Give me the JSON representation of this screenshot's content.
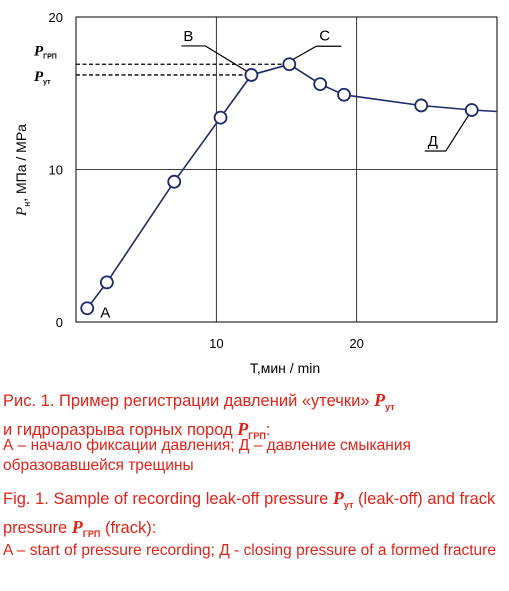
{
  "chart_data": {
    "type": "line",
    "xlabel": "T,мин / min",
    "ylabel_main": "P",
    "ylabel_sub": "н",
    "ylabel_rest": ", МПа / MPa",
    "xlim": [
      0,
      30
    ],
    "ylim": [
      0,
      20
    ],
    "x_ticks": [
      10,
      20
    ],
    "y_ticks": [
      0,
      10,
      20
    ],
    "grid": true,
    "series": [
      {
        "points": [
          {
            "x": 0.8,
            "y": 0.9
          },
          {
            "x": 2.2,
            "y": 2.6
          },
          {
            "x": 7.0,
            "y": 9.2
          },
          {
            "x": 10.3,
            "y": 13.4
          },
          {
            "x": 12.5,
            "y": 16.2
          },
          {
            "x": 15.2,
            "y": 16.9
          },
          {
            "x": 17.4,
            "y": 15.6
          },
          {
            "x": 19.1,
            "y": 14.9
          },
          {
            "x": 24.6,
            "y": 14.2
          },
          {
            "x": 28.2,
            "y": 13.9
          }
        ],
        "tail": {
          "x": 30,
          "y": 13.8
        }
      }
    ],
    "reference_lines": [
      {
        "sym": "P",
        "sub": "ГРП",
        "y": 16.9
      },
      {
        "sym": "P",
        "sub": "ут",
        "y": 16.2
      }
    ],
    "annotations": [
      {
        "text": "A",
        "point_index": 0
      },
      {
        "text": "B",
        "point_index": 4
      },
      {
        "text": "C",
        "point_index": 5
      },
      {
        "text": "Д",
        "point_index": 9
      }
    ]
  },
  "caption": {
    "ru": {
      "lead": "Рис. 1.",
      "text1": " Пример регистрации давлений «утечки» ",
      "sym1": "P",
      "sub1": "ут",
      "text2": " и гидроразрыва горных пород ",
      "sym2": "P",
      "sub2": "ГРП",
      "text3": ":",
      "note": "А – начало фиксации давления; Д – давление смыкания образовавшейся трещины"
    },
    "en": {
      "lead": "Fig. 1.",
      "text1": " Sample of recording leak-off pressure ",
      "sym1": "P",
      "sub1": "ут",
      "text2": " (leak-off) and frack pressure ",
      "sym2": "P",
      "sub2": "ГРП",
      "text3": " (frack):",
      "note": "A – start of pressure recording;  Д -  closing pressure of a formed fracture"
    }
  },
  "colors": {
    "series": "#1f2a6b",
    "axis": "#000000",
    "grid": "#000000",
    "caption": "#e2231a"
  }
}
